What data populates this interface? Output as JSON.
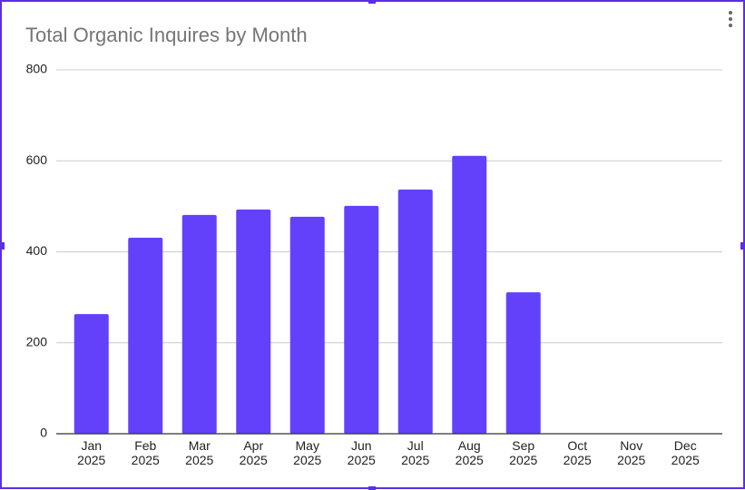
{
  "chart_data": {
    "type": "bar",
    "title": "Total Organic Inquires by Month",
    "categories": [
      "Jan 2025",
      "Feb 2025",
      "Mar 2025",
      "Apr 2025",
      "May 2025",
      "Jun 2025",
      "Jul 2025",
      "Aug 2025",
      "Sep 2025",
      "Oct 2025",
      "Nov 2025",
      "Dec 2025"
    ],
    "values": [
      263,
      431,
      481,
      493,
      477,
      501,
      537,
      611,
      311,
      null,
      null,
      null
    ],
    "color": "#6341fb",
    "ylim": [
      0,
      800
    ],
    "yticks": [
      0,
      200,
      400,
      600,
      800
    ],
    "grid": true
  }
}
